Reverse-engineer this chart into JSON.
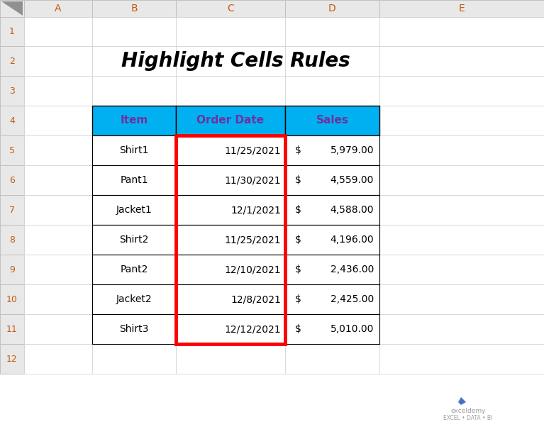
{
  "title": "Highlight Cells Rules",
  "title_fontsize": 20,
  "title_fontstyle": "italic",
  "title_fontweight": "bold",
  "col_header_color": "#00B0F0",
  "col_header_text_color": "#7030A0",
  "rows": [
    [
      "Shirt1",
      "11/25/2021",
      "$",
      "5,979.00"
    ],
    [
      "Pant1",
      "11/30/2021",
      "$",
      "4,559.00"
    ],
    [
      "Jacket1",
      "12/1/2021",
      "$",
      "4,588.00"
    ],
    [
      "Shirt2",
      "11/25/2021",
      "$",
      "4,196.00"
    ],
    [
      "Pant2",
      "12/10/2021",
      "$",
      "2,436.00"
    ],
    [
      "Jacket2",
      "12/8/2021",
      "$",
      "2,425.00"
    ],
    [
      "Shirt3",
      "12/12/2021",
      "$",
      "5,010.00"
    ]
  ],
  "red_border_color": "#FF0000",
  "excel_col_labels": [
    "A",
    "B",
    "C",
    "D",
    "E"
  ],
  "excel_row_labels": [
    "1",
    "2",
    "3",
    "4",
    "5",
    "6",
    "7",
    "8",
    "9",
    "10",
    "11",
    "12"
  ],
  "header_bg": "#E8E8E8",
  "header_text_color": "#C55A11",
  "bg_color": "#FFFFFF",
  "watermark_line1": "exceldemy",
  "watermark_line2": "EXCEL • DATA • BI"
}
